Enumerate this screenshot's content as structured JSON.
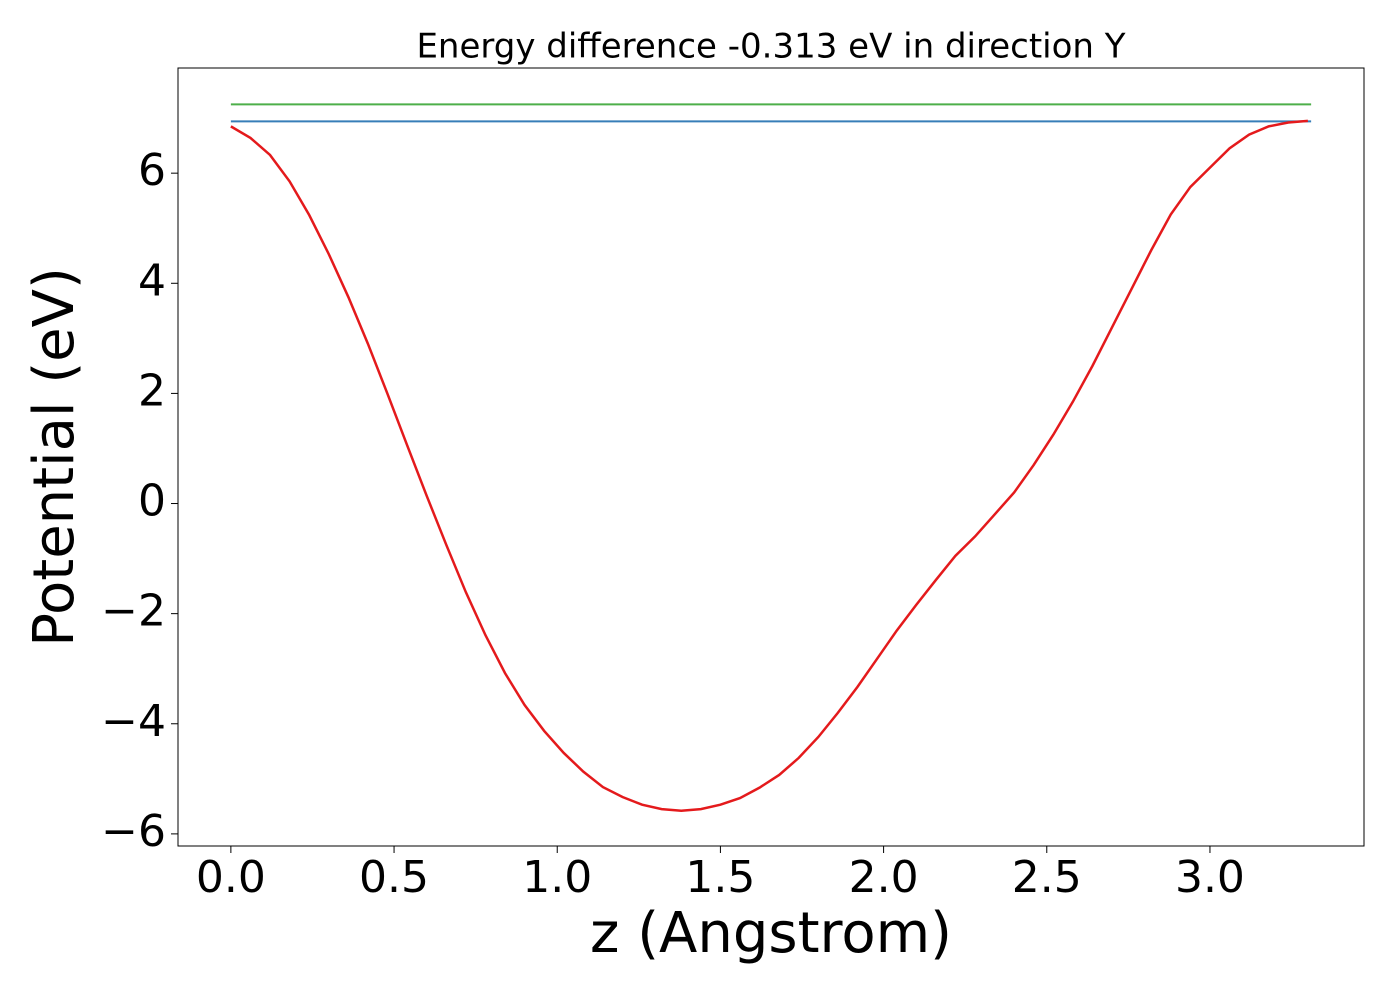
{
  "chart_data": {
    "type": "line",
    "title": "Energy difference -0.313 eV in direction Y",
    "x_label": "z (Angstrom)",
    "y_label": "Potential (eV)",
    "xlim": [
      -0.162,
      3.472
    ],
    "ylim": [
      -6.22,
      7.91
    ],
    "xticks": [
      {
        "value": 0,
        "label": "0.0"
      },
      {
        "value": 0.5,
        "label": "0.5"
      },
      {
        "value": 1,
        "label": "1.0"
      },
      {
        "value": 1.5,
        "label": "1.5"
      },
      {
        "value": 2,
        "label": "2.0"
      },
      {
        "value": 2.5,
        "label": "2.5"
      },
      {
        "value": 3,
        "label": "3.0"
      }
    ],
    "yticks": [
      {
        "value": -6,
        "label": "−6"
      },
      {
        "value": -4,
        "label": "−4"
      },
      {
        "value": -2,
        "label": "−2"
      },
      0,
      2,
      4,
      6
    ],
    "series": [
      {
        "color": "#4daf4a",
        "x": [
          0,
          3.31
        ],
        "values": [
          7.25,
          7.25
        ]
      },
      {
        "color": "#377eb8",
        "x": [
          0,
          3.31
        ],
        "values": [
          6.94,
          6.94
        ]
      },
      {
        "color": "#e41a1c",
        "x": [
          0,
          0.06,
          0.12,
          0.18,
          0.24,
          0.3,
          0.36,
          0.42,
          0.48,
          0.54,
          0.6,
          0.66,
          0.72,
          0.78,
          0.84,
          0.9,
          0.96,
          1.02,
          1.08,
          1.14,
          1.2,
          1.26,
          1.32,
          1.38,
          1.44,
          1.5,
          1.56,
          1.62,
          1.68,
          1.74,
          1.8,
          1.86,
          1.92,
          1.98,
          2.04,
          2.1,
          2.16,
          2.22,
          2.28,
          2.34,
          2.4,
          2.46,
          2.52,
          2.58,
          2.64,
          2.7,
          2.76,
          2.82,
          2.88,
          2.94,
          3.0,
          3.06,
          3.12,
          3.18,
          3.24,
          3.3
        ],
        "values": [
          6.85,
          6.64,
          6.33,
          5.85,
          5.24,
          4.53,
          3.75,
          2.9,
          1.99,
          1.06,
          0.14,
          -0.75,
          -1.61,
          -2.39,
          -3.08,
          -3.66,
          -4.13,
          -4.53,
          -4.87,
          -5.15,
          -5.33,
          -5.47,
          -5.55,
          -5.58,
          -5.55,
          -5.47,
          -5.35,
          -5.16,
          -4.93,
          -4.62,
          -4.24,
          -3.8,
          -3.33,
          -2.82,
          -2.31,
          -1.84,
          -1.39,
          -0.95,
          -0.6,
          -0.2,
          0.2,
          0.7,
          1.25,
          1.85,
          2.5,
          3.2,
          3.9,
          4.6,
          5.25,
          5.75,
          6.1,
          6.45,
          6.7,
          6.85,
          6.92,
          6.95
        ]
      }
    ]
  }
}
